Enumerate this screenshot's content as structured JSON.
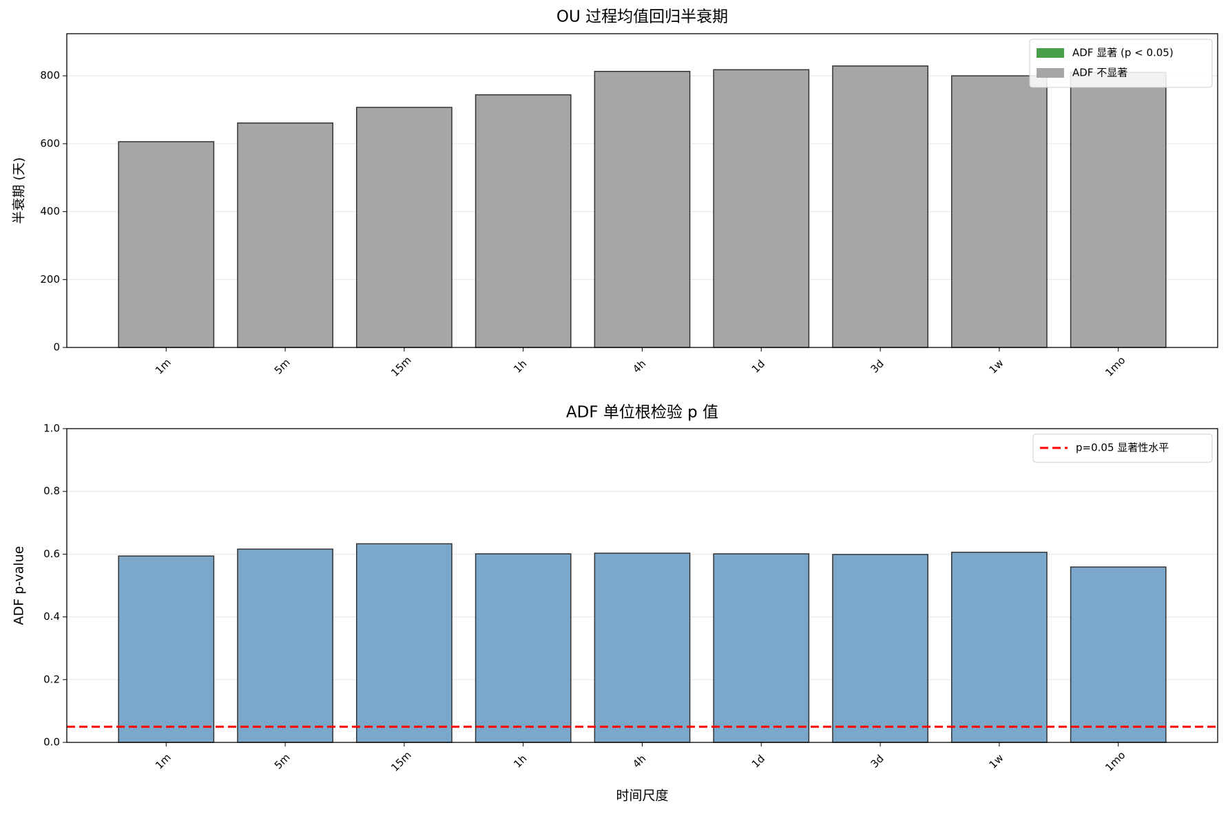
{
  "chart_data": [
    {
      "type": "bar",
      "title": "OU 过程均值回归半衰期",
      "ylabel": "半衰期 (天)",
      "categories": [
        "1m",
        "5m",
        "15m",
        "1h",
        "4h",
        "1d",
        "3d",
        "1w",
        "1mo"
      ],
      "values": [
        606,
        661,
        707,
        744,
        813,
        818,
        829,
        800,
        810
      ],
      "colors": [
        "#a6a6a6",
        "#a6a6a6",
        "#a6a6a6",
        "#a6a6a6",
        "#a6a6a6",
        "#a6a6a6",
        "#a6a6a6",
        "#a6a6a6",
        "#a6a6a6"
      ],
      "ylim": [
        0,
        924
      ],
      "yticks": [
        0,
        200,
        400,
        600,
        800
      ],
      "grid": true,
      "legend": [
        {
          "name": "ADF 显著 (p < 0.05)",
          "color": "#4aa04a"
        },
        {
          "name": "ADF 不显著",
          "color": "#a6a6a6"
        }
      ],
      "legend_position": "upper right"
    },
    {
      "type": "bar",
      "title": "ADF 单位根检验 p 值",
      "xlabel": "时间尺度",
      "ylabel": "ADF p-value",
      "categories": [
        "1m",
        "5m",
        "15m",
        "1h",
        "4h",
        "1d",
        "3d",
        "1w",
        "1mo"
      ],
      "values": [
        0.594,
        0.616,
        0.633,
        0.601,
        0.603,
        0.601,
        0.599,
        0.606,
        0.559
      ],
      "color": "#7ba7cb",
      "ylim": [
        0,
        1
      ],
      "yticks": [
        {
          "value": 0,
          "label": "0.0"
        },
        0.2,
        0.4,
        0.6,
        0.8,
        {
          "value": 1,
          "label": "1.0"
        }
      ],
      "grid": true,
      "reference_line": {
        "name": "p=0.05 显著性水平",
        "value": 0.05,
        "color": "#ff0000"
      },
      "legend_position": "upper right"
    }
  ]
}
